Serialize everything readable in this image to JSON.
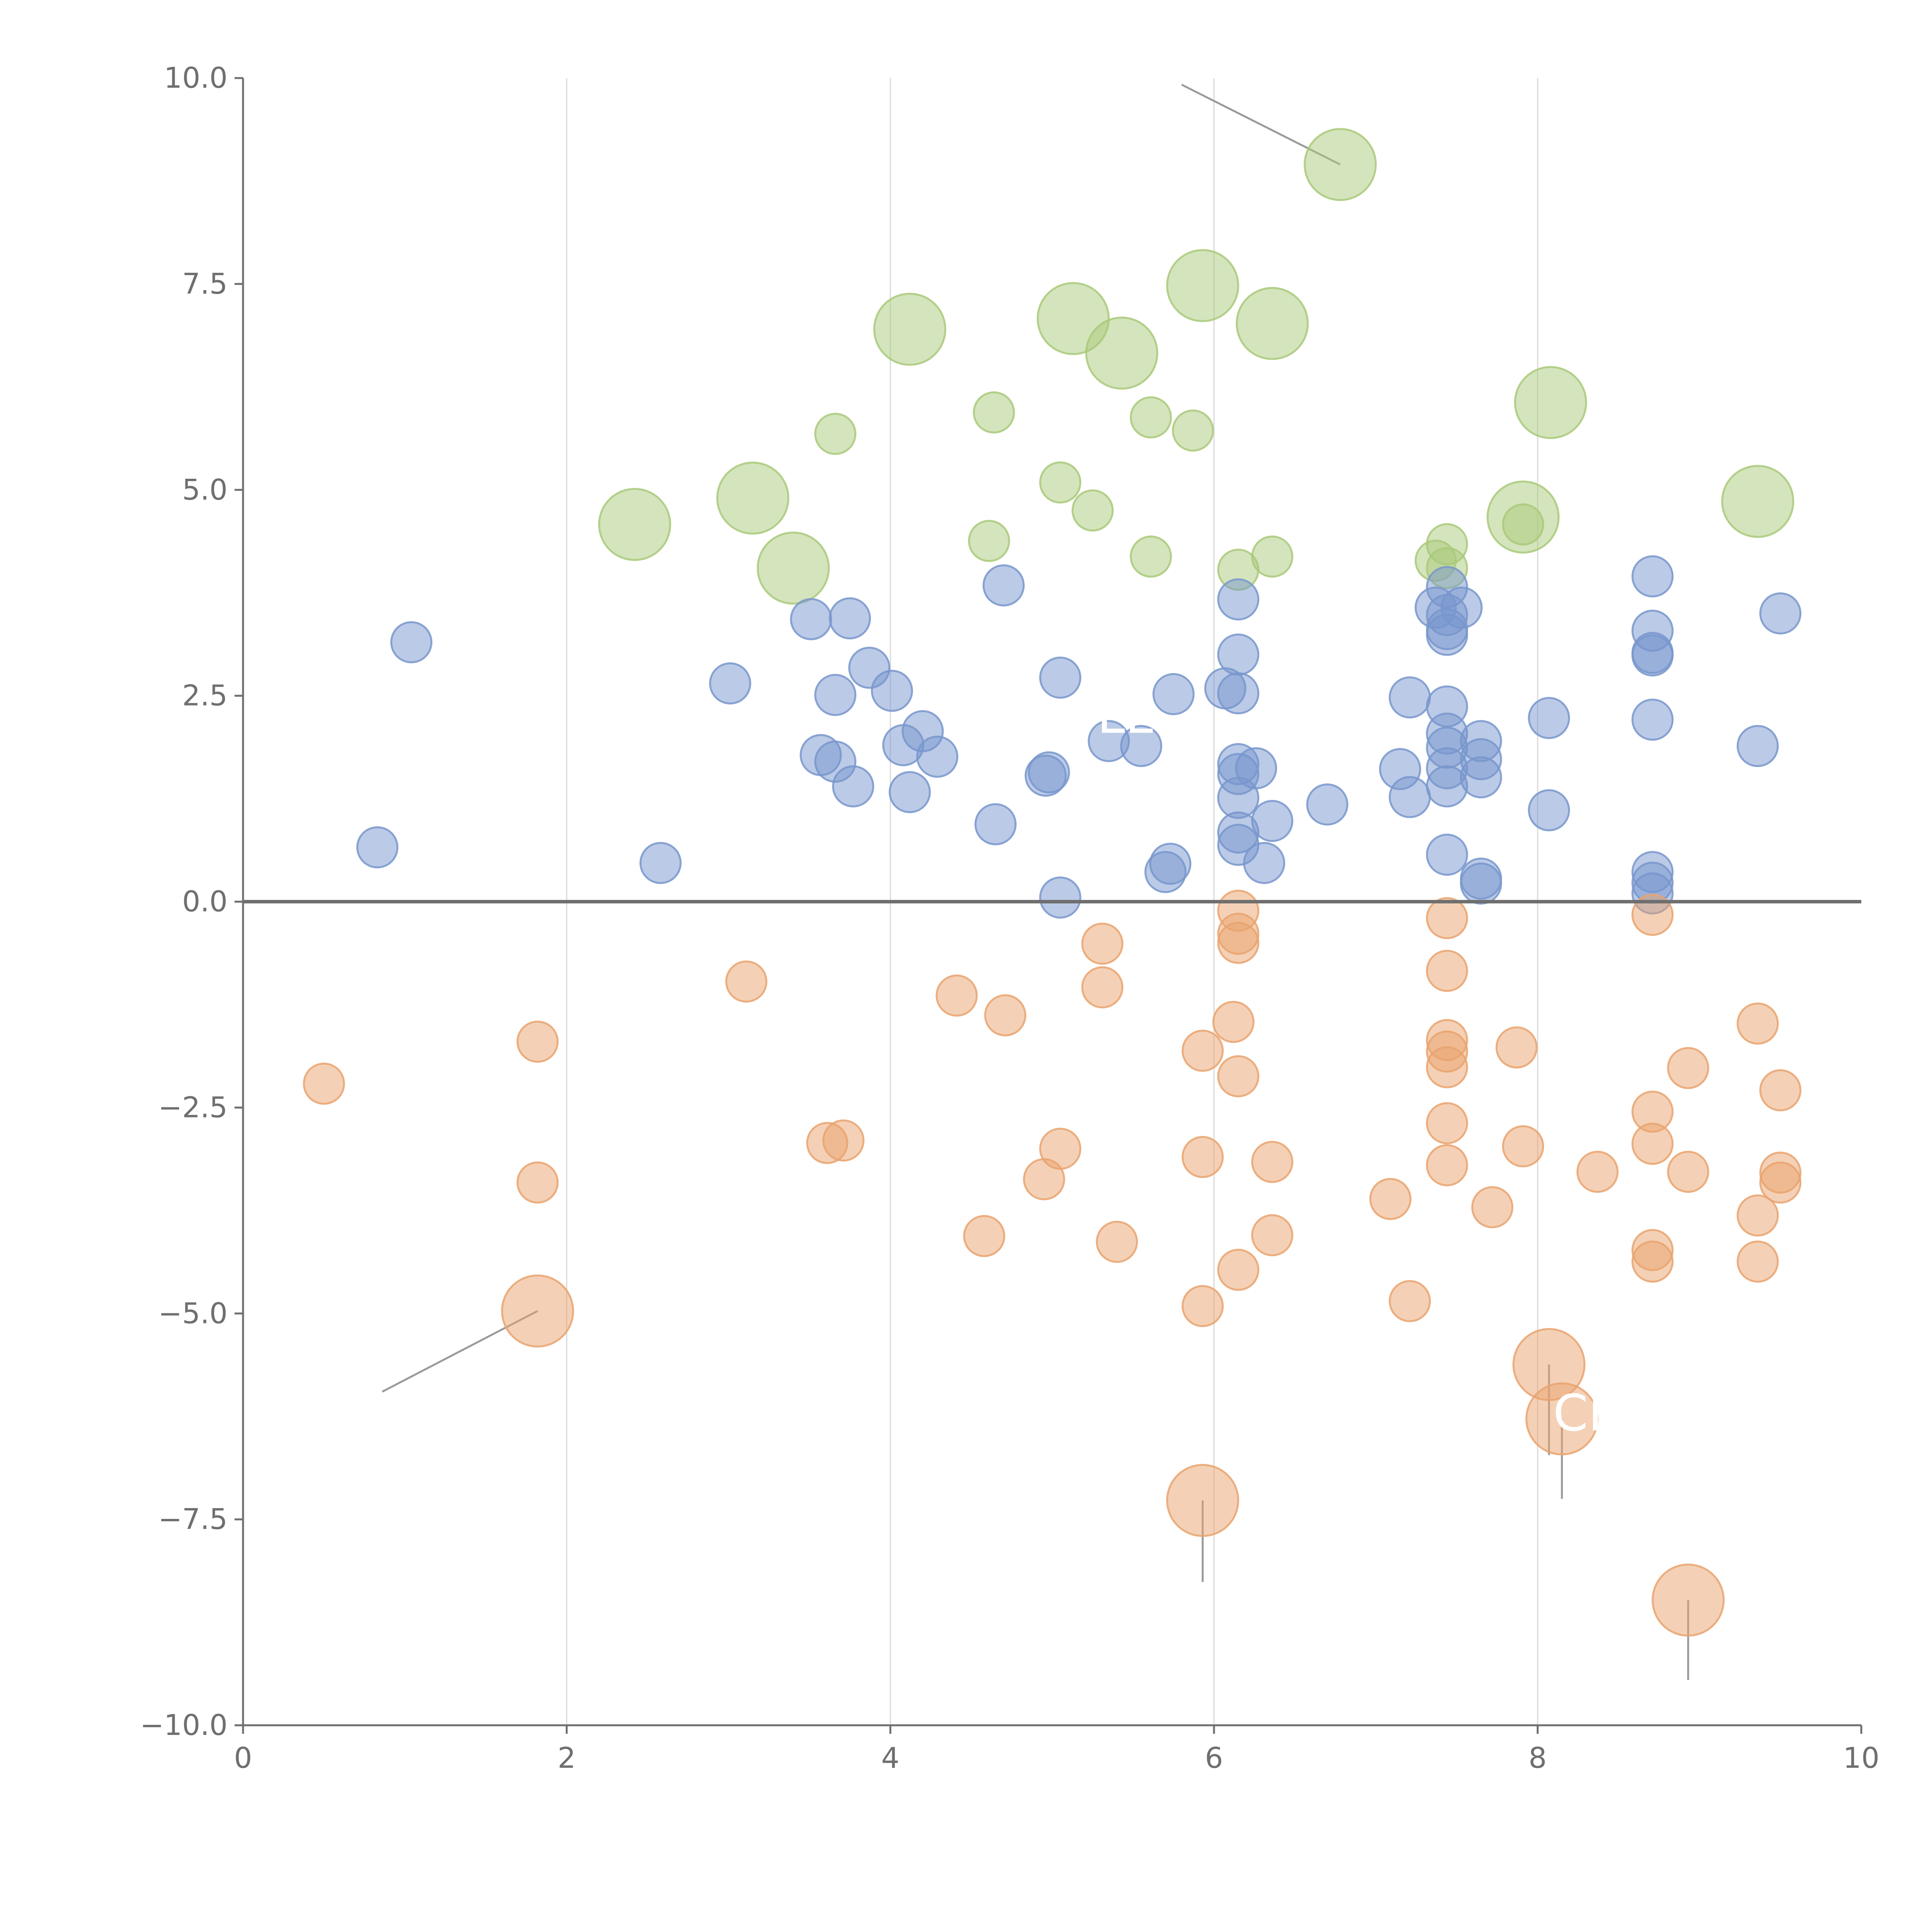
{
  "chart_data": {
    "type": "scatter",
    "title": "",
    "xlabel": "",
    "ylabel": "",
    "xlim": [
      0,
      10
    ],
    "ylim": [
      -10,
      10
    ],
    "xticks": [
      "0",
      "2",
      "4",
      "6",
      "8",
      "10"
    ],
    "yticks": [
      "10.0",
      "7.5",
      "5.0",
      "2.5",
      "0.0",
      "−2.5",
      "−5.0",
      "−7.5",
      "−10.0"
    ],
    "grid": "vertical",
    "zero_line": true,
    "colors": {
      "green": "#a9c97a",
      "blue": "#7896cd",
      "orange": "#e9a36e"
    },
    "series": [
      {
        "color": "green",
        "points": [
          {
            "x": 6.78,
            "y": 8.95,
            "s": "large"
          },
          {
            "x": 4.12,
            "y": 6.95,
            "s": "large"
          },
          {
            "x": 5.13,
            "y": 7.08,
            "s": "large"
          },
          {
            "x": 5.43,
            "y": 6.66,
            "s": "large"
          },
          {
            "x": 5.93,
            "y": 7.48,
            "s": "large"
          },
          {
            "x": 6.36,
            "y": 7.02,
            "s": "large"
          },
          {
            "x": 8.08,
            "y": 6.06,
            "s": "large"
          },
          {
            "x": 2.42,
            "y": 4.58,
            "s": "large"
          },
          {
            "x": 3.15,
            "y": 4.9,
            "s": "large"
          },
          {
            "x": 3.4,
            "y": 4.05,
            "s": "large"
          },
          {
            "x": 7.91,
            "y": 4.67,
            "s": "large"
          },
          {
            "x": 9.36,
            "y": 4.86,
            "s": "large"
          },
          {
            "x": 3.66,
            "y": 5.68,
            "s": "small"
          },
          {
            "x": 4.64,
            "y": 5.94,
            "s": "small"
          },
          {
            "x": 5.61,
            "y": 5.88,
            "s": "small"
          },
          {
            "x": 5.87,
            "y": 5.72,
            "s": "small"
          },
          {
            "x": 5.05,
            "y": 5.09,
            "s": "small"
          },
          {
            "x": 5.25,
            "y": 4.75,
            "s": "small"
          },
          {
            "x": 4.61,
            "y": 4.38,
            "s": "small"
          },
          {
            "x": 5.61,
            "y": 4.19,
            "s": "small"
          },
          {
            "x": 6.15,
            "y": 4.03,
            "s": "small"
          },
          {
            "x": 6.36,
            "y": 4.19,
            "s": "small"
          },
          {
            "x": 7.37,
            "y": 4.14,
            "s": "small"
          },
          {
            "x": 7.44,
            "y": 4.34,
            "s": "small"
          },
          {
            "x": 7.44,
            "y": 4.05,
            "s": "small"
          },
          {
            "x": 7.91,
            "y": 4.58,
            "s": "small"
          }
        ]
      },
      {
        "color": "blue",
        "points": [
          {
            "x": 1.04,
            "y": 3.15
          },
          {
            "x": 0.83,
            "y": 0.66
          },
          {
            "x": 2.58,
            "y": 0.47
          },
          {
            "x": 3.01,
            "y": 2.65
          },
          {
            "x": 3.51,
            "y": 3.43
          },
          {
            "x": 3.75,
            "y": 3.44
          },
          {
            "x": 3.66,
            "y": 2.51
          },
          {
            "x": 3.87,
            "y": 2.84
          },
          {
            "x": 4.01,
            "y": 2.56
          },
          {
            "x": 4.2,
            "y": 2.07
          },
          {
            "x": 4.08,
            "y": 1.9
          },
          {
            "x": 4.29,
            "y": 1.76
          },
          {
            "x": 3.57,
            "y": 1.78
          },
          {
            "x": 3.66,
            "y": 1.7
          },
          {
            "x": 3.77,
            "y": 1.4
          },
          {
            "x": 4.12,
            "y": 1.33
          },
          {
            "x": 4.65,
            "y": 0.94
          },
          {
            "x": 4.7,
            "y": 3.84
          },
          {
            "x": 5.05,
            "y": 2.72
          },
          {
            "x": 4.98,
            "y": 1.57
          },
          {
            "x": 4.96,
            "y": 1.53
          },
          {
            "x": 5.35,
            "y": 1.95
          },
          {
            "x": 5.55,
            "y": 1.89
          },
          {
            "x": 5.75,
            "y": 2.52
          },
          {
            "x": 6.07,
            "y": 2.59
          },
          {
            "x": 6.15,
            "y": 2.53
          },
          {
            "x": 6.15,
            "y": 3.0
          },
          {
            "x": 6.15,
            "y": 3.67
          },
          {
            "x": 5.05,
            "y": 0.05
          },
          {
            "x": 5.7,
            "y": 0.36
          },
          {
            "x": 5.73,
            "y": 0.46
          },
          {
            "x": 6.15,
            "y": 1.67
          },
          {
            "x": 6.26,
            "y": 1.62
          },
          {
            "x": 6.15,
            "y": 1.55
          },
          {
            "x": 6.15,
            "y": 1.26
          },
          {
            "x": 6.36,
            "y": 0.98
          },
          {
            "x": 6.15,
            "y": 0.84
          },
          {
            "x": 6.15,
            "y": 0.69
          },
          {
            "x": 6.31,
            "y": 0.47
          },
          {
            "x": 6.7,
            "y": 1.18
          },
          {
            "x": 7.15,
            "y": 1.61
          },
          {
            "x": 7.21,
            "y": 1.27
          },
          {
            "x": 7.21,
            "y": 2.48
          },
          {
            "x": 7.37,
            "y": 3.57
          },
          {
            "x": 7.44,
            "y": 3.82
          },
          {
            "x": 7.44,
            "y": 3.48
          },
          {
            "x": 7.44,
            "y": 3.31
          },
          {
            "x": 7.44,
            "y": 3.24
          },
          {
            "x": 7.53,
            "y": 3.57
          },
          {
            "x": 7.44,
            "y": 2.37
          },
          {
            "x": 7.44,
            "y": 2.04
          },
          {
            "x": 7.44,
            "y": 1.87
          },
          {
            "x": 7.44,
            "y": 1.62
          },
          {
            "x": 7.44,
            "y": 1.4
          },
          {
            "x": 7.65,
            "y": 1.95
          },
          {
            "x": 7.65,
            "y": 1.73
          },
          {
            "x": 7.65,
            "y": 1.51
          },
          {
            "x": 7.44,
            "y": 0.57
          },
          {
            "x": 7.65,
            "y": 0.28
          },
          {
            "x": 7.65,
            "y": 0.22
          },
          {
            "x": 8.07,
            "y": 2.23
          },
          {
            "x": 8.07,
            "y": 1.11
          },
          {
            "x": 8.71,
            "y": 3.95
          },
          {
            "x": 8.71,
            "y": 3.29
          },
          {
            "x": 8.71,
            "y": 3.02
          },
          {
            "x": 8.71,
            "y": 2.99
          },
          {
            "x": 8.71,
            "y": 2.21
          },
          {
            "x": 8.71,
            "y": 0.36
          },
          {
            "x": 8.71,
            "y": 0.23
          },
          {
            "x": 8.71,
            "y": 0.1
          },
          {
            "x": 9.36,
            "y": 1.89
          },
          {
            "x": 9.5,
            "y": 3.5
          }
        ]
      },
      {
        "color": "orange",
        "points": [
          {
            "x": 0.5,
            "y": -2.21,
            "s": "small"
          },
          {
            "x": 1.82,
            "y": -1.7,
            "s": "small"
          },
          {
            "x": 1.82,
            "y": -3.41,
            "s": "small"
          },
          {
            "x": 3.11,
            "y": -0.97,
            "s": "small"
          },
          {
            "x": 3.61,
            "y": -2.93,
            "s": "small"
          },
          {
            "x": 3.71,
            "y": -2.9,
            "s": "small"
          },
          {
            "x": 4.41,
            "y": -1.14,
            "s": "small"
          },
          {
            "x": 4.71,
            "y": -1.38,
            "s": "small"
          },
          {
            "x": 4.58,
            "y": -4.06,
            "s": "small"
          },
          {
            "x": 4.95,
            "y": -3.37,
            "s": "small"
          },
          {
            "x": 5.05,
            "y": -3.0,
            "s": "small"
          },
          {
            "x": 5.31,
            "y": -0.51,
            "s": "small"
          },
          {
            "x": 5.31,
            "y": -1.04,
            "s": "small"
          },
          {
            "x": 5.4,
            "y": -4.13,
            "s": "small"
          },
          {
            "x": 5.93,
            "y": -1.81,
            "s": "small"
          },
          {
            "x": 5.93,
            "y": -3.1,
            "s": "small"
          },
          {
            "x": 5.93,
            "y": -4.91,
            "s": "small"
          },
          {
            "x": 6.15,
            "y": -0.11,
            "s": "small"
          },
          {
            "x": 6.15,
            "y": -0.39,
            "s": "small"
          },
          {
            "x": 6.15,
            "y": -0.5,
            "s": "small"
          },
          {
            "x": 6.12,
            "y": -1.46,
            "s": "small"
          },
          {
            "x": 6.15,
            "y": -2.12,
            "s": "small"
          },
          {
            "x": 6.36,
            "y": -3.16,
            "s": "small"
          },
          {
            "x": 6.36,
            "y": -4.05,
            "s": "small"
          },
          {
            "x": 6.15,
            "y": -4.47,
            "s": "small"
          },
          {
            "x": 7.09,
            "y": -3.61,
            "s": "small"
          },
          {
            "x": 7.21,
            "y": -4.85,
            "s": "small"
          },
          {
            "x": 7.44,
            "y": -0.2,
            "s": "small"
          },
          {
            "x": 7.44,
            "y": -0.84,
            "s": "small"
          },
          {
            "x": 7.44,
            "y": -1.68,
            "s": "small"
          },
          {
            "x": 7.44,
            "y": -1.82,
            "s": "small"
          },
          {
            "x": 7.44,
            "y": -2.01,
            "s": "small"
          },
          {
            "x": 7.44,
            "y": -2.69,
            "s": "small"
          },
          {
            "x": 7.44,
            "y": -3.2,
            "s": "small"
          },
          {
            "x": 7.72,
            "y": -3.71,
            "s": "small"
          },
          {
            "x": 7.87,
            "y": -1.77,
            "s": "small"
          },
          {
            "x": 7.91,
            "y": -2.97,
            "s": "small"
          },
          {
            "x": 8.37,
            "y": -3.28,
            "s": "small"
          },
          {
            "x": 8.71,
            "y": -0.16,
            "s": "small"
          },
          {
            "x": 8.71,
            "y": -2.55,
            "s": "small"
          },
          {
            "x": 8.71,
            "y": -2.94,
            "s": "small"
          },
          {
            "x": 8.71,
            "y": -4.23,
            "s": "small"
          },
          {
            "x": 8.71,
            "y": -4.37,
            "s": "small"
          },
          {
            "x": 8.93,
            "y": -2.02,
            "s": "small"
          },
          {
            "x": 8.93,
            "y": -3.28,
            "s": "small"
          },
          {
            "x": 9.36,
            "y": -1.48,
            "s": "small"
          },
          {
            "x": 9.36,
            "y": -3.81,
            "s": "small"
          },
          {
            "x": 9.36,
            "y": -4.37,
            "s": "small"
          },
          {
            "x": 9.5,
            "y": -2.29,
            "s": "small"
          },
          {
            "x": 9.5,
            "y": -3.29,
            "s": "small"
          },
          {
            "x": 9.5,
            "y": -3.41,
            "s": "small"
          },
          {
            "x": 1.82,
            "y": -4.97,
            "s": "large"
          },
          {
            "x": 8.07,
            "y": -5.62,
            "s": "large"
          },
          {
            "x": 8.15,
            "y": -6.28,
            "s": "large"
          },
          {
            "x": 5.93,
            "y": -7.27,
            "s": "large"
          },
          {
            "x": 8.93,
            "y": -8.48,
            "s": "large"
          }
        ]
      }
    ],
    "annotations": [
      {
        "text": "LL",
        "x": 5.45,
        "y": 2.05
      },
      {
        "text": "CH",
        "x": 8.32,
        "y": -6.42
      }
    ]
  }
}
